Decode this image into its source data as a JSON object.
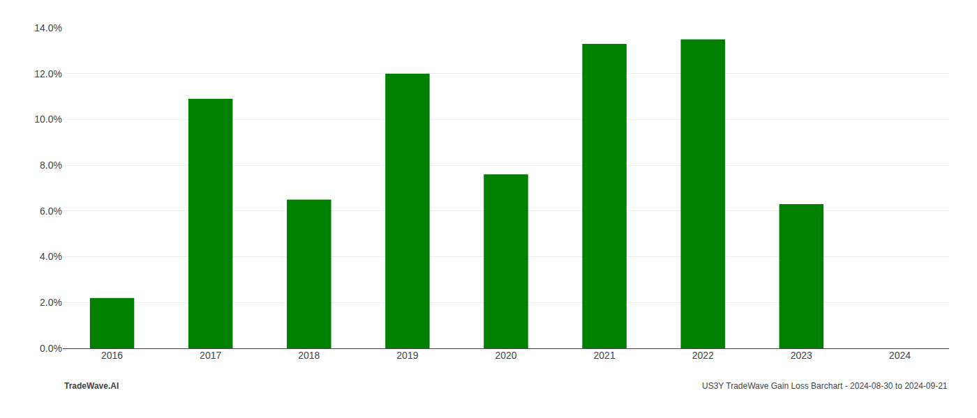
{
  "chart_data": {
    "type": "bar",
    "categories": [
      "2016",
      "2017",
      "2018",
      "2019",
      "2020",
      "2021",
      "2022",
      "2023",
      "2024"
    ],
    "values": [
      0.022,
      0.109,
      0.065,
      0.12,
      0.076,
      0.133,
      0.135,
      0.063,
      0.0
    ],
    "color": "#008000",
    "ylim": [
      0,
      0.14
    ],
    "yticks": [
      {
        "value": 0.0,
        "label": "0.0%"
      },
      {
        "value": 0.02,
        "label": "2.0%"
      },
      {
        "value": 0.04,
        "label": "4.0%"
      },
      {
        "value": 0.06,
        "label": "6.0%"
      },
      {
        "value": 0.08,
        "label": "8.0%"
      },
      {
        "value": 0.1,
        "label": "10.0%"
      },
      {
        "value": 0.12,
        "label": "12.0%"
      },
      {
        "value": 0.14,
        "label": "14.0%"
      }
    ],
    "grid": true,
    "annotations": [
      "TradeWave.AI",
      "US3Y TradeWave Gain Loss Barchart - 2024-08-30 to 2024-09-21"
    ]
  }
}
